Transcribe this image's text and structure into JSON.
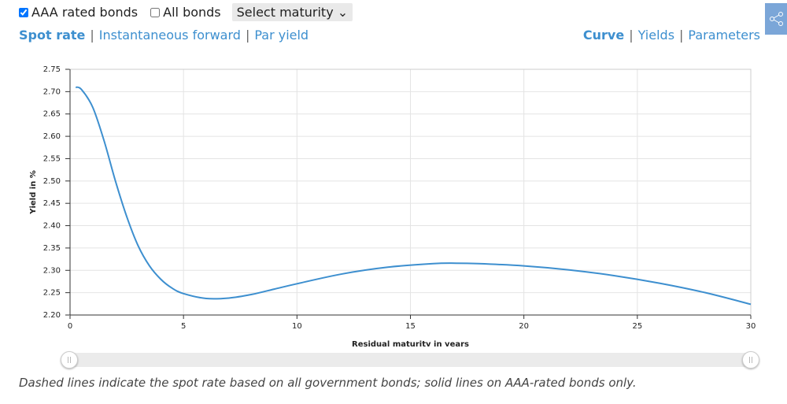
{
  "controls": {
    "aaa_label": "AAA rated bonds",
    "aaa_checked": true,
    "all_label": "All bonds",
    "all_checked": false,
    "select": "Select maturity"
  },
  "tabs": {
    "separator": "|",
    "left": [
      "Spot rate",
      "Instantaneous forward",
      "Par yield"
    ],
    "right": [
      "Curve",
      "Yields",
      "Parameters"
    ]
  },
  "chart_data": {
    "type": "line",
    "y_label": "Yield in %",
    "x_label": "Residual maturity in years",
    "color": "#3d8fcf",
    "grid": true,
    "x": [
      0.25,
      0.5,
      1,
      1.5,
      2,
      2.5,
      3,
      3.5,
      4,
      4.5,
      5,
      6,
      7,
      8,
      9,
      10,
      12,
      14,
      16,
      17,
      18,
      20,
      22,
      24,
      26,
      28,
      30
    ],
    "values": [
      2.71,
      2.705,
      2.665,
      2.59,
      2.5,
      2.42,
      2.355,
      2.31,
      2.28,
      2.26,
      2.248,
      2.237,
      2.238,
      2.246,
      2.258,
      2.27,
      2.292,
      2.307,
      2.315,
      2.316,
      2.315,
      2.31,
      2.301,
      2.288,
      2.271,
      2.25,
      2.224
    ],
    "xlim": [
      0,
      30
    ],
    "ylim": [
      2.2,
      2.75
    ],
    "xticks": [
      0,
      5,
      10,
      15,
      20,
      25,
      30
    ],
    "yticks": [
      {
        "value": 2.2,
        "label": "2.20"
      },
      2.25,
      {
        "value": 2.3,
        "label": "2.30"
      },
      2.35,
      {
        "value": 2.4,
        "label": "2.40"
      },
      2.45,
      {
        "value": 2.5,
        "label": "2.50"
      },
      2.55,
      {
        "value": 2.6,
        "label": "2.60"
      },
      2.65,
      {
        "value": 2.7,
        "label": "2.70"
      },
      2.75
    ]
  },
  "footnote": "Dashed lines indicate the spot rate based on all government bonds; solid lines on AAA-rated bonds only."
}
